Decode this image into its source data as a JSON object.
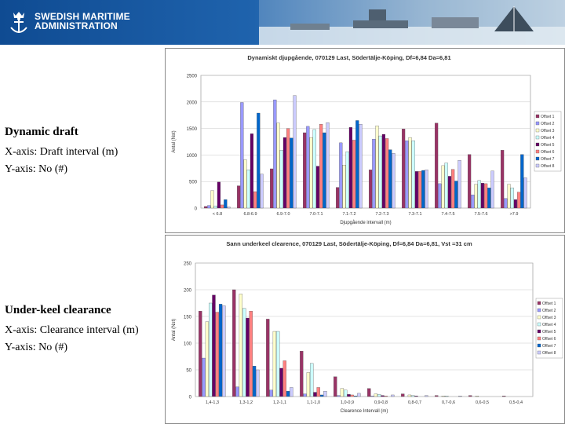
{
  "header": {
    "org_line1": "SWEDISH MARITIME",
    "org_line2": "ADMINISTRATION",
    "banner_color": "#1a5aa5"
  },
  "captions": {
    "dynamic": {
      "title": "Dynamic draft",
      "xaxis": "X-axis: Draft interval (m)",
      "yaxis": "Y-axis: No (#)"
    },
    "ukc": {
      "title": "Under-keel clearance",
      "xaxis": "X-axis: Clearance interval (m)",
      "yaxis": "Y-axis: No (#)"
    }
  },
  "series_colors": [
    "#993366",
    "#9999ff",
    "#ffffcc",
    "#ccffff",
    "#660066",
    "#ff8080",
    "#0066cc",
    "#ccccff"
  ],
  "chart_data": [
    {
      "type": "bar",
      "title": "Dynamiskt djupgående, 070129 Last, Södertälje-Köping, Df=6,84 Da=6,81",
      "xlabel": "Djupgående intervall (m)",
      "ylabel": "Antal (Nst)",
      "ylim": [
        0,
        2500
      ],
      "yticks": [
        "0",
        "500",
        "1000",
        "1500",
        "2000",
        "2500"
      ],
      "ytick_values": [
        0,
        500,
        1000,
        1500,
        2000,
        2500
      ],
      "categories": [
        "< 6.8",
        "6.8-6.9",
        "6.9-7.0",
        "7.0-7.1",
        "7.1-7.2",
        "7.2-7.3",
        "7.3-7.1",
        "7.4-7.5",
        "7.5-7.6",
        ">7.9"
      ],
      "series": [
        {
          "name": "Offset 1",
          "values": [
            30,
            420,
            740,
            1420,
            390,
            720,
            1490,
            1600,
            1010,
            1090
          ]
        },
        {
          "name": "Offset 2",
          "values": [
            50,
            1990,
            2040,
            1540,
            1230,
            1300,
            1270,
            460,
            250,
            180
          ]
        },
        {
          "name": "Offset 3",
          "values": [
            330,
            910,
            1600,
            1330,
            810,
            1550,
            1330,
            800,
            450,
            450
          ]
        },
        {
          "name": "Offset 4",
          "values": [
            40,
            720,
            1090,
            1480,
            1060,
            1360,
            1270,
            850,
            520,
            380
          ]
        },
        {
          "name": "Offset 5",
          "values": [
            490,
            1400,
            1330,
            790,
            1520,
            1390,
            690,
            600,
            470,
            160
          ]
        },
        {
          "name": "Offset 6",
          "values": [
            60,
            310,
            1500,
            1580,
            1280,
            1310,
            690,
            730,
            460,
            300
          ]
        },
        {
          "name": "Offset 7",
          "values": [
            160,
            1790,
            1320,
            1420,
            1650,
            1100,
            710,
            510,
            380,
            1010
          ]
        },
        {
          "name": "Offset 8",
          "values": [
            20,
            640,
            2120,
            1610,
            1580,
            1030,
            720,
            900,
            700,
            570
          ]
        }
      ]
    },
    {
      "type": "bar",
      "title": "Sann underkeel clearence, 070129 Last, Södertälje-Köping, Df=6,84 Da=6,81, Vst =31 cm",
      "xlabel": "Clearence Intervall (m)",
      "ylabel": "Antal (Nst)",
      "ylim": [
        0,
        250
      ],
      "yticks": [
        "0",
        "50",
        "100",
        "150",
        "200",
        "250"
      ],
      "ytick_values": [
        0,
        50,
        100,
        150,
        200,
        250
      ],
      "categories": [
        "1,4-1,3",
        "1,3-1,2",
        "1,2-1,1",
        "1,1-1,0",
        "1,0-0,9",
        "0,9-0,8",
        "0,8-0,7",
        "0,7-0,6",
        "0,6-0,5",
        "0,5-0,4"
      ],
      "series": [
        {
          "name": "Offset 1",
          "values": [
            160,
            200,
            145,
            85,
            37,
            15,
            5,
            2,
            2,
            1
          ]
        },
        {
          "name": "Offset 2",
          "values": [
            72,
            18,
            12,
            5,
            2,
            1,
            0,
            0,
            0,
            0
          ]
        },
        {
          "name": "Offset 3",
          "values": [
            140,
            192,
            122,
            45,
            15,
            5,
            3,
            1,
            1,
            0
          ]
        },
        {
          "name": "Offset 4",
          "values": [
            175,
            165,
            122,
            62,
            12,
            4,
            2,
            1,
            0,
            0
          ]
        },
        {
          "name": "Offset 5",
          "values": [
            190,
            147,
            53,
            8,
            4,
            2,
            1,
            0,
            0,
            0
          ]
        },
        {
          "name": "Offset 6",
          "values": [
            158,
            160,
            67,
            17,
            3,
            1,
            0,
            0,
            0,
            0
          ]
        },
        {
          "name": "Offset 7",
          "values": [
            173,
            57,
            10,
            3,
            1,
            0,
            0,
            0,
            0,
            0
          ]
        },
        {
          "name": "Offset 8",
          "values": [
            170,
            50,
            17,
            10,
            6,
            3,
            2,
            1,
            0,
            0
          ]
        }
      ]
    }
  ]
}
